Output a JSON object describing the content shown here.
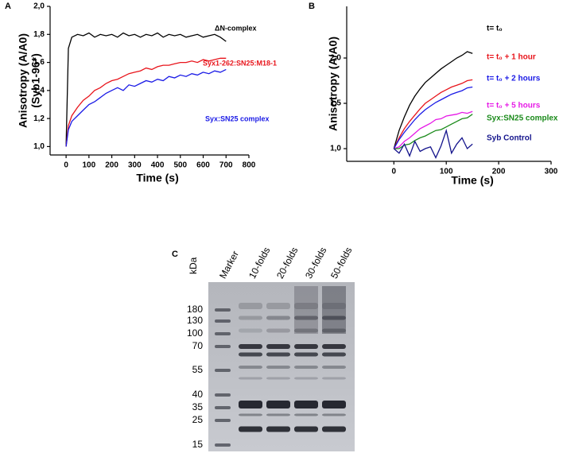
{
  "chart_data": [
    {
      "type": "line",
      "panel": "A",
      "xlabel": "Time (s)",
      "ylabel": [
        "Anisotropy (A/A0)",
        "(Syb1-96*)"
      ],
      "x": [
        0,
        10,
        25,
        50,
        75,
        100,
        125,
        150,
        175,
        200,
        225,
        250,
        275,
        300,
        325,
        350,
        375,
        400,
        425,
        450,
        475,
        500,
        525,
        550,
        575,
        600,
        625,
        650,
        675,
        700
      ],
      "series": [
        {
          "name": "ΔN-complex",
          "color": "#000000",
          "values": [
            1.0,
            1.7,
            1.78,
            1.8,
            1.79,
            1.81,
            1.78,
            1.8,
            1.79,
            1.8,
            1.78,
            1.81,
            1.79,
            1.8,
            1.78,
            1.8,
            1.79,
            1.81,
            1.78,
            1.8,
            1.79,
            1.8,
            1.78,
            1.79,
            1.8,
            1.78,
            1.79,
            1.8,
            1.78,
            1.75
          ]
        },
        {
          "name": "Syx1-262:SN25:M18-1",
          "color": "#e8141b",
          "values": [
            1.0,
            1.15,
            1.22,
            1.28,
            1.33,
            1.36,
            1.4,
            1.42,
            1.45,
            1.47,
            1.48,
            1.5,
            1.52,
            1.53,
            1.54,
            1.56,
            1.55,
            1.57,
            1.58,
            1.58,
            1.59,
            1.6,
            1.6,
            1.61,
            1.6,
            1.62,
            1.61,
            1.62,
            1.63,
            1.63
          ]
        },
        {
          "name": "Syx:SN25 complex",
          "color": "#1a1ae6",
          "values": [
            1.0,
            1.12,
            1.18,
            1.22,
            1.26,
            1.3,
            1.32,
            1.35,
            1.38,
            1.4,
            1.42,
            1.4,
            1.44,
            1.43,
            1.45,
            1.47,
            1.46,
            1.48,
            1.47,
            1.5,
            1.49,
            1.51,
            1.5,
            1.52,
            1.51,
            1.53,
            1.52,
            1.54,
            1.53,
            1.55
          ]
        }
      ],
      "xlim": [
        -70,
        800
      ],
      "xticks": [
        0,
        100,
        200,
        300,
        400,
        500,
        600,
        700,
        800
      ],
      "ylim": [
        0.94,
        2.0
      ],
      "yticks": [
        {
          "value": 1.0,
          "label": "1,0"
        },
        {
          "value": 1.2,
          "label": "1,2"
        },
        {
          "value": 1.4,
          "label": "1,4"
        },
        {
          "value": 1.6,
          "label": "1,6"
        },
        {
          "value": 1.8,
          "label": "1,8"
        },
        {
          "value": 2.0,
          "label": "2,0"
        }
      ]
    },
    {
      "type": "line",
      "panel": "B",
      "xlabel": "Time (s)",
      "ylabel": [
        "Anisotropy (A/A0)"
      ],
      "x": [
        0,
        10,
        20,
        30,
        40,
        50,
        60,
        70,
        80,
        90,
        100,
        110,
        120,
        130,
        140,
        150
      ],
      "series": [
        {
          "name": "t= t₀",
          "color": "#000000",
          "values": [
            1.0,
            1.2,
            1.35,
            1.48,
            1.58,
            1.66,
            1.73,
            1.78,
            1.83,
            1.88,
            1.92,
            1.96,
            2.0,
            2.03,
            2.07,
            2.05
          ]
        },
        {
          "name": "t= t₀ + 1 hour",
          "color": "#e8141b",
          "values": [
            1.0,
            1.12,
            1.22,
            1.3,
            1.37,
            1.44,
            1.5,
            1.54,
            1.58,
            1.62,
            1.65,
            1.68,
            1.7,
            1.72,
            1.75,
            1.76
          ]
        },
        {
          "name": "t= t₀ + 2 hours",
          "color": "#1a1ae6",
          "values": [
            1.0,
            1.1,
            1.18,
            1.25,
            1.32,
            1.38,
            1.43,
            1.47,
            1.51,
            1.54,
            1.57,
            1.6,
            1.62,
            1.64,
            1.67,
            1.68
          ]
        },
        {
          "name": "t= t₀ + 5 hours",
          "color": "#e619e6",
          "values": [
            1.0,
            1.02,
            1.08,
            1.12,
            1.17,
            1.22,
            1.25,
            1.28,
            1.32,
            1.33,
            1.36,
            1.37,
            1.38,
            1.4,
            1.39,
            1.41
          ]
        },
        {
          "name": "Syx:SN25 complex",
          "color": "#1a8a1a",
          "values": [
            1.0,
            1.0,
            1.04,
            1.05,
            1.09,
            1.12,
            1.14,
            1.17,
            1.2,
            1.21,
            1.24,
            1.27,
            1.3,
            1.33,
            1.34,
            1.38
          ]
        },
        {
          "name": "Syb Control",
          "color": "#14148c",
          "values": [
            1.0,
            0.95,
            1.05,
            0.92,
            1.08,
            0.97,
            1.0,
            1.02,
            0.9,
            1.03,
            1.2,
            0.95,
            1.05,
            1.12,
            1.0,
            1.05
          ]
        }
      ],
      "xlim": [
        -90,
        300
      ],
      "xticks": [
        0,
        100,
        200,
        300
      ],
      "ylim": [
        0.86,
        2.57
      ],
      "yticks": [
        {
          "value": 1.0,
          "label": "1,0"
        },
        {
          "value": 1.5,
          "label": "1,5"
        },
        {
          "value": 2.0,
          "label": "2,0"
        }
      ]
    }
  ],
  "gel": {
    "panel": "C",
    "unit": "kDa",
    "lanes": [
      "Marker",
      "10-folds",
      "20-folds",
      "30-folds",
      "50-folds"
    ],
    "markers": [
      "180",
      "130",
      "100",
      "70",
      "55",
      "40",
      "35",
      "25",
      "15"
    ]
  }
}
